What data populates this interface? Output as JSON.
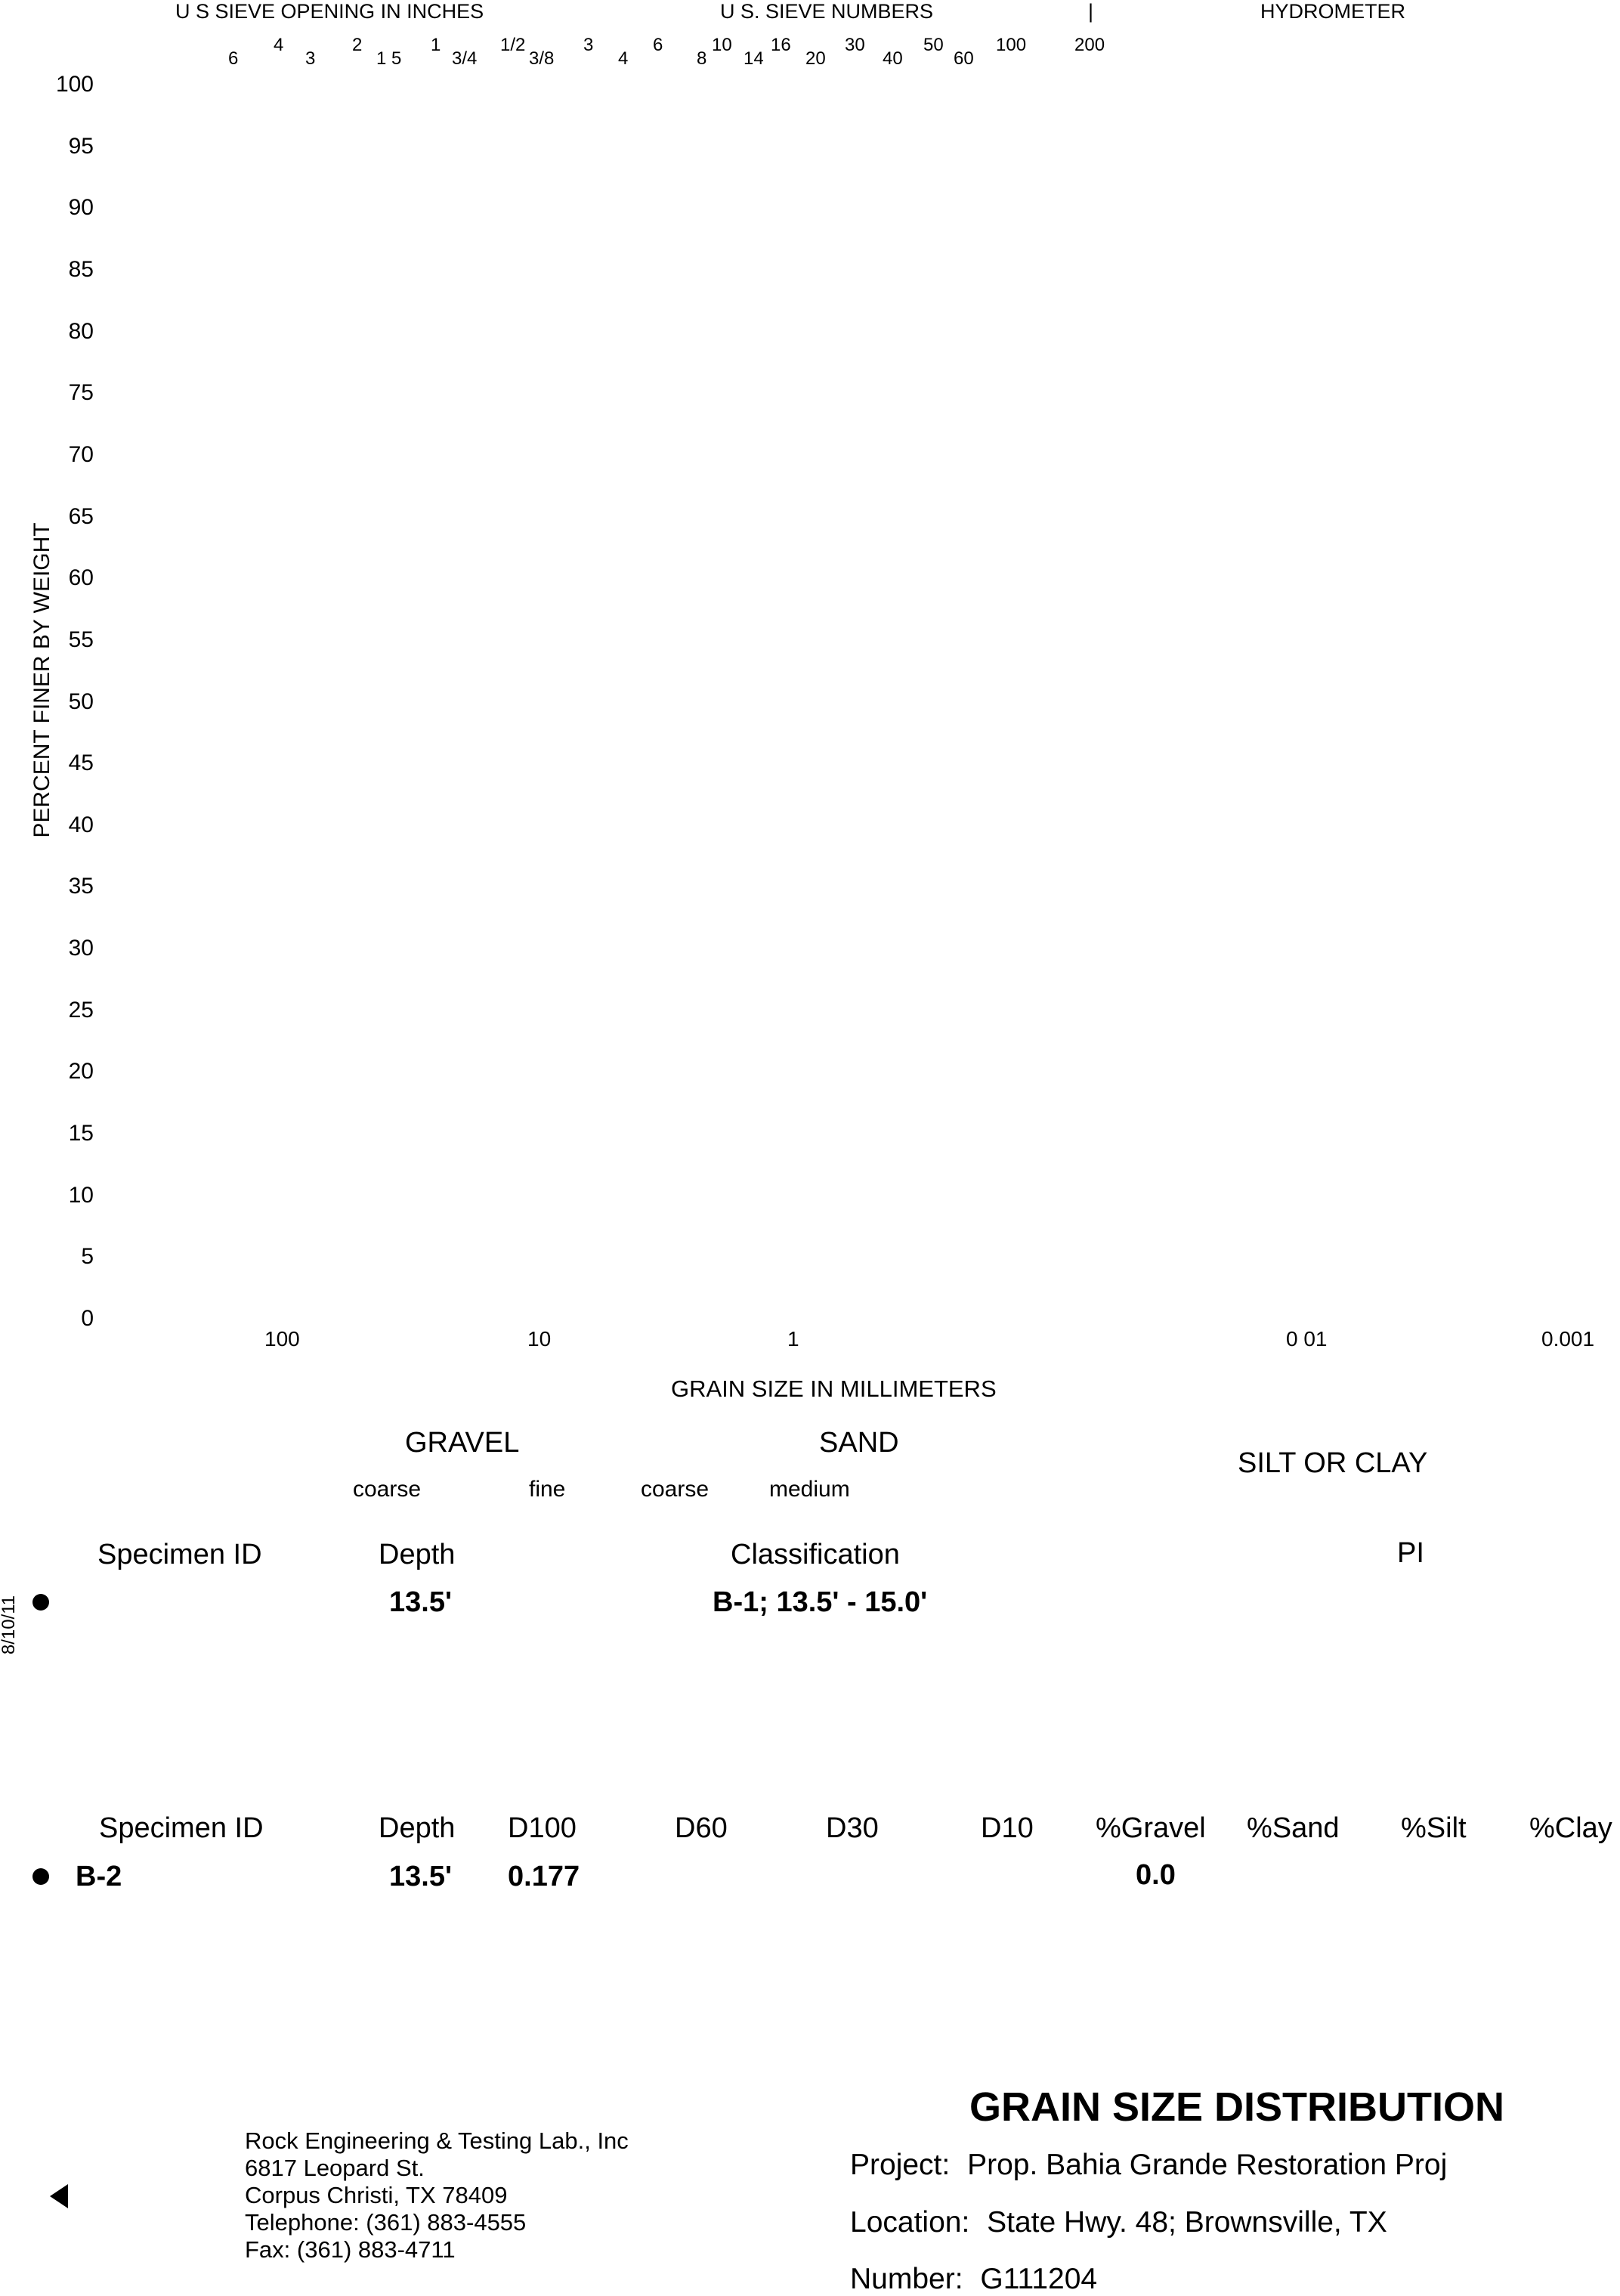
{
  "chart_data": {
    "type": "scatter",
    "title": "",
    "xlabel": "GRAIN SIZE IN MILLIMETERS",
    "ylabel": "PERCENT FINER BY WEIGHT",
    "x_scale": "log",
    "y_ticks": [
      "100",
      "95",
      "90",
      "85",
      "80",
      "75",
      "70",
      "65",
      "60",
      "55",
      "50",
      "45",
      "40",
      "35",
      "30",
      "25",
      "20",
      "15",
      "10",
      "5",
      "0"
    ],
    "x_tick_labels": [
      "100",
      "10",
      "1",
      "0 01",
      "0.001"
    ],
    "ylim": [
      0,
      100
    ],
    "series": []
  },
  "header": {
    "sieve_inches_label": "U S  SIEVE OPENING IN INCHES",
    "sieve_numbers_label": "U S. SIEVE NUMBERS",
    "bar_mark": "|",
    "hydrometer_label": "HYDROMETER"
  },
  "sieve_marks": [
    {
      "text": "6",
      "raised": false
    },
    {
      "text": "4",
      "raised": true
    },
    {
      "text": "3",
      "raised": false
    },
    {
      "text": "2",
      "raised": true
    },
    {
      "text": "1 5",
      "raised": false
    },
    {
      "text": "1",
      "raised": true
    },
    {
      "text": "3/4",
      "raised": false
    },
    {
      "text": "1/2",
      "raised": true
    },
    {
      "text": "3/8",
      "raised": false
    },
    {
      "text": "3",
      "raised": true
    },
    {
      "text": "4",
      "raised": false
    },
    {
      "text": "6",
      "raised": true
    },
    {
      "text": "8",
      "raised": false
    },
    {
      "text": "10",
      "raised": true
    },
    {
      "text": "14",
      "raised": false
    },
    {
      "text": "16",
      "raised": true
    },
    {
      "text": "20",
      "raised": false
    },
    {
      "text": "30",
      "raised": true
    },
    {
      "text": "40",
      "raised": false
    },
    {
      "text": "50",
      "raised": true
    },
    {
      "text": "60",
      "raised": false
    },
    {
      "text": "100",
      "raised": true
    },
    {
      "text": "200",
      "raised": true
    }
  ],
  "zones": {
    "gravel": "GRAVEL",
    "sand": "SAND",
    "silt_clay": "SILT OR CLAY",
    "coarse1": "coarse",
    "fine": "fine",
    "coarse2": "coarse",
    "medium": "medium"
  },
  "table1": {
    "headers": {
      "specimen": "Specimen ID",
      "depth": "Depth",
      "classification": "Classification",
      "pi": "PI"
    },
    "row": {
      "specimen": "",
      "depth": "13.5'",
      "classification": "B-1; 13.5' - 15.0'"
    }
  },
  "side_date": "8/10/11",
  "table2": {
    "headers": [
      "Specimen ID",
      "Depth",
      "D100",
      "D60",
      "D30",
      "D10",
      "%Gravel",
      "%Sand",
      "%Silt",
      "%Clay"
    ],
    "row": {
      "specimen": "B-2",
      "depth": "13.5'",
      "d100": "0.177",
      "gravel": "0.0"
    }
  },
  "company": {
    "lines": [
      "Rock Engineering & Testing Lab., Inc",
      "6817 Leopard St.",
      "Corpus Christi, TX 78409",
      "Telephone:  (361) 883-4555",
      "Fax:  (361) 883-4711"
    ]
  },
  "report": {
    "title": "GRAIN SIZE DISTRIBUTION",
    "project_label": "Project:",
    "project": "Prop. Bahia Grande Restoration Proj",
    "location_label": "Location:",
    "location": "State Hwy. 48; Brownsville, TX",
    "number_label": "Number:",
    "number": "G111204"
  }
}
